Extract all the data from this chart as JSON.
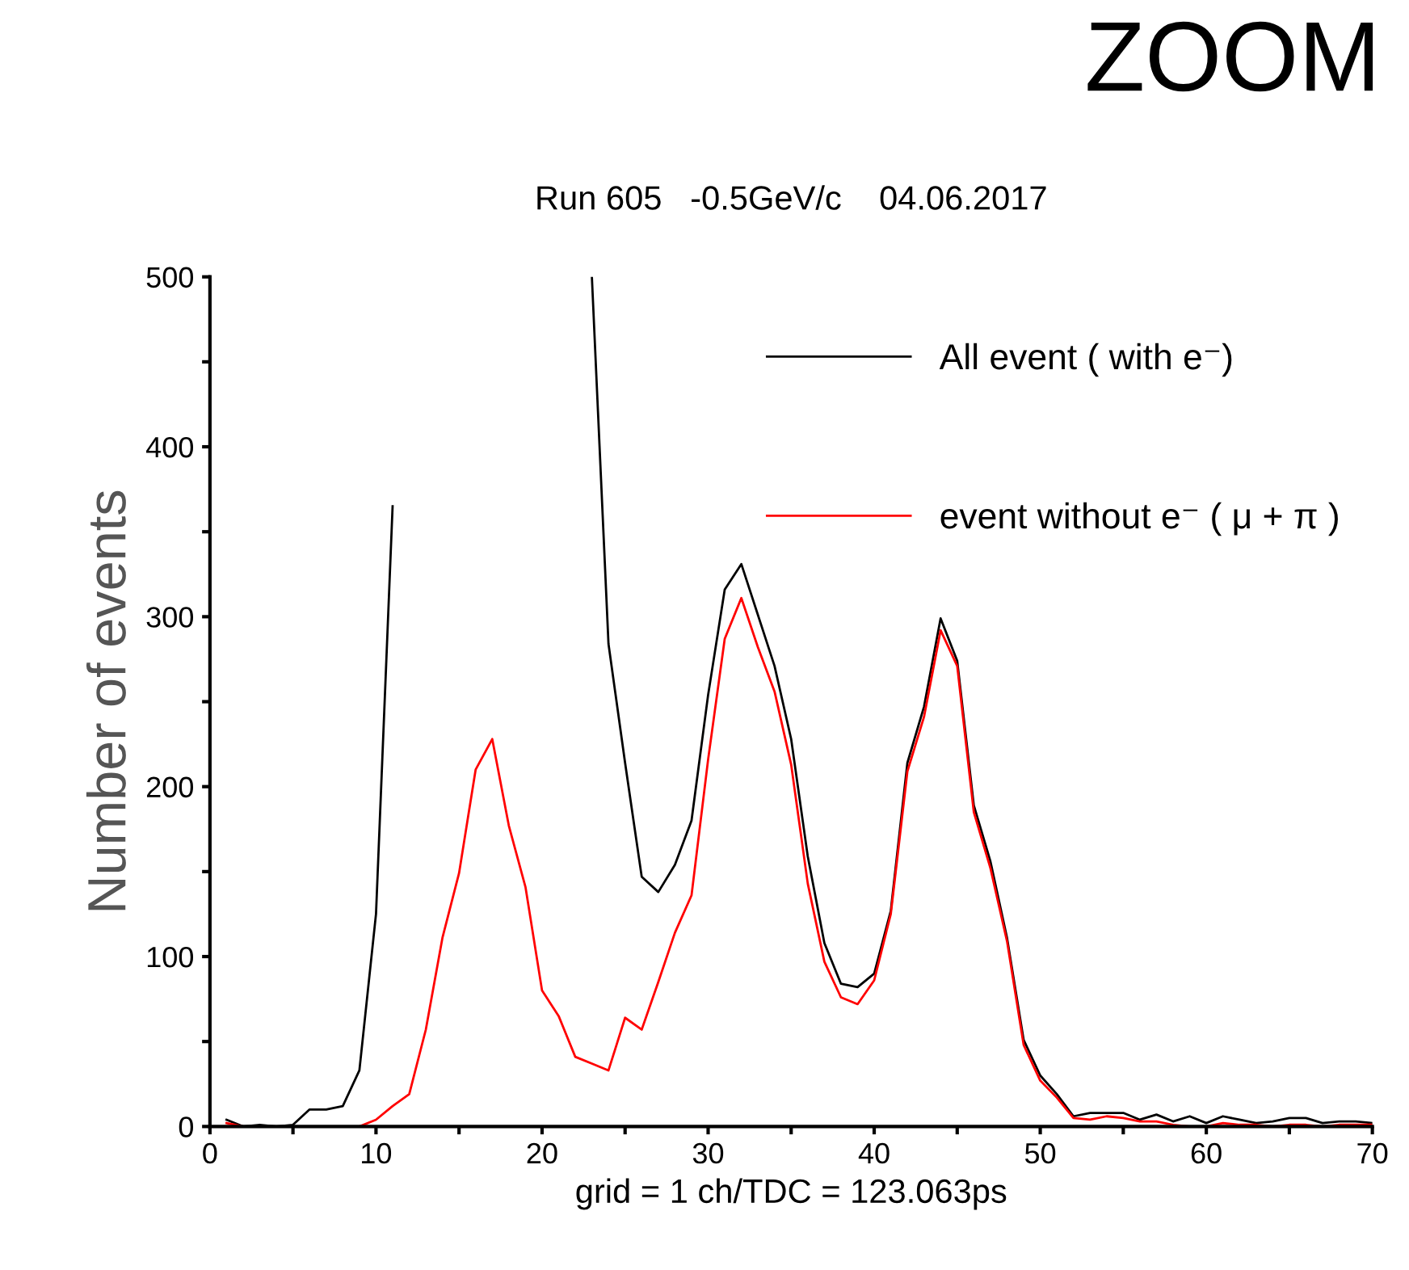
{
  "chart_data": {
    "type": "line",
    "title": "Run 605   -0.5GeV/c    04.06.2017",
    "xlabel": "grid = 1 ch/TDC = 123.063ps",
    "ylabel": "Number of events",
    "annotations": [
      "ZOOM"
    ],
    "x": [
      1,
      2,
      3,
      4,
      5,
      6,
      7,
      8,
      9,
      10,
      11,
      12,
      13,
      14,
      15,
      16,
      17,
      18,
      19,
      20,
      21,
      22,
      23,
      24,
      25,
      26,
      27,
      28,
      29,
      30,
      31,
      32,
      33,
      34,
      35,
      36,
      37,
      38,
      39,
      40,
      41,
      42,
      43,
      44,
      45,
      46,
      47,
      48,
      49,
      50,
      51,
      52,
      53,
      54,
      55,
      56,
      57,
      58,
      59,
      60,
      61,
      62,
      63,
      64,
      65,
      66,
      67,
      68,
      69,
      70
    ],
    "series": [
      {
        "name": "All event ( with e⁻)",
        "color": "#000000",
        "values": [
          4,
          0,
          1,
          0,
          1,
          10,
          10,
          12,
          33,
          125,
          365,
          null,
          null,
          null,
          null,
          null,
          null,
          null,
          null,
          null,
          null,
          null,
          500,
          284,
          214,
          147,
          138,
          154,
          180,
          254,
          316,
          331,
          301,
          271,
          228,
          159,
          108,
          84,
          82,
          90,
          127,
          214,
          247,
          299,
          274,
          189,
          156,
          111,
          51,
          30,
          19,
          6,
          8,
          8,
          8,
          4,
          7,
          3,
          6,
          2,
          6,
          4,
          2,
          3,
          5,
          5,
          2,
          3,
          3,
          2
        ]
      },
      {
        "name": "event without e⁻ ( μ + π )",
        "color": "#ff0000",
        "values": [
          2,
          0,
          0,
          0,
          0,
          0,
          0,
          0,
          0,
          4,
          12,
          19,
          57,
          111,
          149,
          210,
          228,
          177,
          141,
          80,
          65,
          41,
          37,
          33,
          64,
          57,
          85,
          114,
          136,
          216,
          287,
          311,
          282,
          256,
          213,
          143,
          97,
          76,
          72,
          86,
          125,
          209,
          241,
          292,
          271,
          185,
          152,
          109,
          48,
          27,
          17,
          5,
          4,
          6,
          5,
          3,
          3,
          1,
          0,
          0,
          2,
          1,
          1,
          0,
          1,
          1,
          0,
          1,
          1,
          1
        ]
      }
    ],
    "xlim": [
      0,
      70
    ],
    "xticks": [
      0,
      {
        "value": 5,
        "label": null
      },
      10,
      {
        "value": 15,
        "label": null
      },
      20,
      {
        "value": 25,
        "label": null
      },
      30,
      {
        "value": 35,
        "label": null
      },
      40,
      {
        "value": 45,
        "label": null
      },
      50,
      {
        "value": 55,
        "label": null
      },
      60,
      {
        "value": 65,
        "label": null
      },
      70
    ],
    "ylim": [
      0,
      500
    ],
    "yticks": [
      0,
      {
        "value": 50,
        "label": null
      },
      100,
      {
        "value": 150,
        "label": null
      },
      200,
      {
        "value": 250,
        "label": null
      },
      300,
      {
        "value": 350,
        "label": null
      },
      400,
      {
        "value": 450,
        "label": null
      },
      500
    ],
    "grid": false,
    "legend": "top right",
    "marker": "none",
    "line_style": "solid"
  }
}
